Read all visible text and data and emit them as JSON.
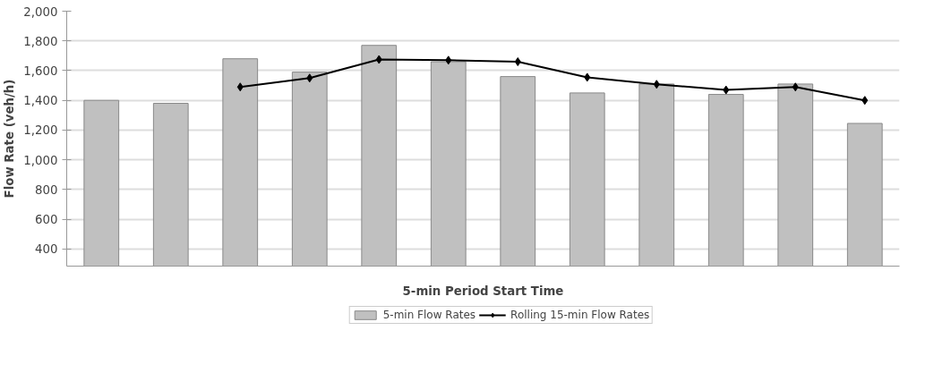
{
  "chart_data": {
    "type": "bar",
    "xlabel": "5-min Period Start Time",
    "ylabel": "Flow Rate (veh/h)",
    "categories": [
      null,
      null,
      null,
      null,
      null,
      null,
      null,
      null,
      null,
      null,
      null,
      null
    ],
    "series": [
      {
        "name": "5-min Flow Rates",
        "color": "#c0c0c0",
        "values": [
          1400,
          1380,
          1680,
          1590,
          1770,
          1660,
          1560,
          1450,
          1510,
          1440,
          1510,
          1245
        ]
      },
      {
        "name": "Rolling 15-min Flow Rates",
        "type": "line",
        "color": "#000000",
        "marker": "diamond",
        "values": [
          null,
          null,
          1490,
          1550,
          1675,
          1670,
          1660,
          1555,
          1508,
          1470,
          1490,
          1400
        ]
      }
    ],
    "ylim": [
      285,
      2000
    ],
    "yticks": [
      {
        "value": 400,
        "label": "400"
      },
      {
        "value": 600,
        "label": "600"
      },
      {
        "value": 800,
        "label": "800"
      },
      {
        "value": 1000,
        "label": "1,000"
      },
      {
        "value": 1200,
        "label": "1,200"
      },
      {
        "value": 1400,
        "label": "1,400"
      },
      {
        "value": 1600,
        "label": "1,600"
      },
      {
        "value": 1800,
        "label": "1,800"
      },
      {
        "value": 2000,
        "label": "2,000"
      }
    ],
    "grid": "y",
    "legend": "bottom",
    "tick_labels": "y"
  }
}
